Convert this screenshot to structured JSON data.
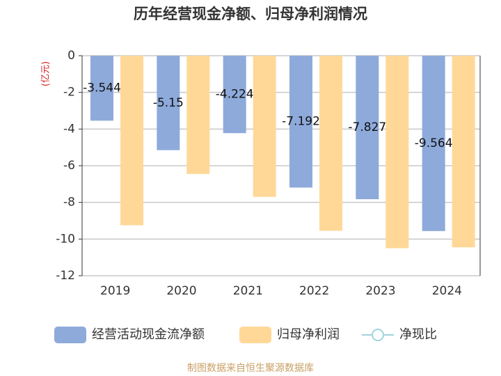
{
  "chart_data": {
    "type": "bar",
    "title": "历年经营现金净额、归母净利润情况",
    "unit_label": "(亿元)",
    "source": "制图数据来自恒生聚源数据库",
    "categories": [
      "2019",
      "2020",
      "2021",
      "2022",
      "2023",
      "2024"
    ],
    "series": [
      {
        "name": "经营活动现金流净额",
        "color": "#8eaadb",
        "values": [
          -3.544,
          -5.15,
          -4.224,
          -7.192,
          -7.827,
          -9.564
        ]
      },
      {
        "name": "归母净利润",
        "color": "#ffd898",
        "values": [
          -9.25,
          -6.45,
          -7.7,
          -9.55,
          -10.5,
          -10.45
        ]
      },
      {
        "name": "净现比",
        "color": "#9fd4dc",
        "values": [
          null,
          null,
          null,
          null,
          null,
          null
        ]
      }
    ],
    "ylim": [
      -12,
      0
    ],
    "yticks": [
      0,
      -2,
      -4,
      -6,
      -8,
      -10,
      -12
    ],
    "grid": true
  }
}
